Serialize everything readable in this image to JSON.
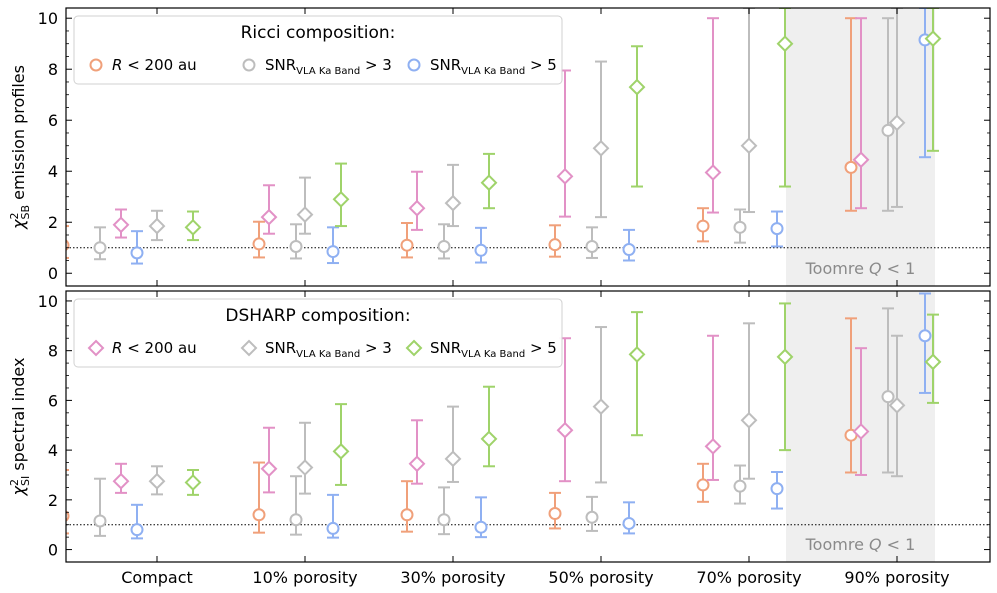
{
  "colors": {
    "orange": "#f0a07a",
    "gray": "#bdbdbd",
    "blue": "#8fb0f2",
    "pink": "#e291c6",
    "green": "#9fd36a",
    "shade": "#efefef"
  },
  "chart_data": {
    "type": "scatter",
    "description_kind": "errorbar",
    "categories": [
      "Compact",
      "10% porosity",
      "30% porosity",
      "50% porosity",
      "70% porosity",
      "90% porosity"
    ],
    "toomre_label_prefix": "Toomre ",
    "toomre_label_q": "Q",
    "toomre_label_suffix": " < 1",
    "shaded_categories": [
      "90% porosity"
    ],
    "reference_line_y": 1,
    "panels": [
      {
        "id": "top",
        "ylabel_main": "χ",
        "ylabel_sup": "2",
        "ylabel_sub": "SB",
        "ylabel_rest": " emission profiles",
        "ylim": [
          -0.5,
          10.4
        ],
        "yticks": [
          0,
          2,
          4,
          6,
          8,
          10
        ],
        "legend_title": "Ricci composition:",
        "legend": [
          {
            "label_a": "R",
            "label_b": " < 200 au",
            "sub": "",
            "color_key": "orange",
            "marker": "circle"
          },
          {
            "label_a": "SNR",
            "label_b": " > 3",
            "sub": "VLA Ka Band",
            "color_key": "gray",
            "marker": "circle"
          },
          {
            "label_a": "SNR",
            "label_b": " > 5",
            "sub": "VLA Ka Band",
            "color_key": "blue",
            "marker": "circle"
          }
        ],
        "series": [
          {
            "name": "Ricci R<200au",
            "color_key": "orange",
            "marker": "circle",
            "cat_index": [
              0,
              1,
              2,
              3,
              4,
              5
            ],
            "slot": 0,
            "points": [
              [
                0,
                1.1,
                0.6,
                1.85
              ],
              [
                1,
                1.15,
                0.62,
                2.02
              ],
              [
                2,
                1.1,
                0.62,
                1.97
              ],
              [
                3,
                1.12,
                0.65,
                1.88
              ],
              [
                4,
                1.85,
                1.25,
                2.55
              ],
              [
                5,
                4.15,
                2.45,
                10.0
              ]
            ]
          },
          {
            "name": "Ricci SNR>3",
            "color_key": "gray",
            "marker": "circle",
            "slot": 1,
            "points": [
              [
                0,
                1.0,
                0.55,
                1.8
              ],
              [
                1,
                1.05,
                0.58,
                1.92
              ],
              [
                2,
                1.05,
                0.58,
                1.92
              ],
              [
                3,
                1.05,
                0.6,
                1.8
              ],
              [
                4,
                1.8,
                1.2,
                2.5
              ],
              [
                5,
                5.6,
                2.45,
                10.0
              ]
            ]
          },
          {
            "name": "Ricci SNR>5",
            "color_key": "blue",
            "marker": "circle",
            "slot": 2,
            "points": [
              [
                0,
                0.8,
                0.38,
                1.65
              ],
              [
                1,
                0.85,
                0.4,
                1.8
              ],
              [
                2,
                0.9,
                0.42,
                1.78
              ],
              [
                3,
                0.93,
                0.5,
                1.7
              ],
              [
                4,
                1.75,
                1.05,
                2.42
              ],
              [
                5,
                9.15,
                4.55,
                10.4
              ]
            ]
          },
          {
            "name": "DSHARP R<200au",
            "color_key": "pink",
            "marker": "diamond",
            "slot": 0,
            "points": [
              [
                0,
                1.9,
                1.4,
                2.5
              ],
              [
                1,
                2.2,
                1.55,
                3.45
              ],
              [
                2,
                2.55,
                1.7,
                3.98
              ],
              [
                3,
                3.8,
                2.22,
                7.95
              ],
              [
                4,
                3.95,
                2.38,
                10.0
              ],
              [
                5,
                4.45,
                2.55,
                10.0
              ]
            ]
          },
          {
            "name": "DSHARP SNR>3",
            "color_key": "gray",
            "marker": "diamond",
            "slot": 1,
            "points": [
              [
                0,
                1.85,
                1.3,
                2.45
              ],
              [
                1,
                2.3,
                1.55,
                3.75
              ],
              [
                2,
                2.75,
                1.85,
                4.25
              ],
              [
                3,
                4.9,
                2.2,
                8.3
              ],
              [
                4,
                5.0,
                2.4,
                10.4
              ],
              [
                5,
                5.9,
                2.6,
                10.4
              ]
            ]
          },
          {
            "name": "DSHARP SNR>5",
            "color_key": "green",
            "marker": "diamond",
            "slot": 2,
            "points": [
              [
                0,
                1.8,
                1.3,
                2.42
              ],
              [
                1,
                2.9,
                1.85,
                4.3
              ],
              [
                2,
                3.55,
                2.55,
                4.68
              ],
              [
                3,
                7.3,
                3.4,
                8.9
              ],
              [
                4,
                9.0,
                3.4,
                10.4
              ],
              [
                5,
                9.2,
                4.8,
                10.4
              ]
            ]
          }
        ]
      },
      {
        "id": "bottom",
        "ylabel_main": "χ",
        "ylabel_sup": "2",
        "ylabel_sub": "SI",
        "ylabel_rest": " spectral index",
        "ylim": [
          -0.5,
          10.4
        ],
        "yticks": [
          0,
          2,
          4,
          6,
          8,
          10
        ],
        "legend_title": "DSHARP composition:",
        "legend": [
          {
            "label_a": "R",
            "label_b": " < 200 au",
            "sub": "",
            "color_key": "pink",
            "marker": "diamond"
          },
          {
            "label_a": "SNR",
            "label_b": " > 3",
            "sub": "VLA Ka Band",
            "color_key": "gray",
            "marker": "diamond"
          },
          {
            "label_a": "SNR",
            "label_b": " > 5",
            "sub": "VLA Ka Band",
            "color_key": "green",
            "marker": "diamond"
          }
        ],
        "series": [
          {
            "name": "Ricci R<200au",
            "color_key": "orange",
            "marker": "circle",
            "slot": 0,
            "points": [
              [
                0,
                1.35,
                0.65,
                3.2
              ],
              [
                1,
                1.4,
                0.68,
                3.5
              ],
              [
                2,
                1.4,
                0.72,
                2.75
              ],
              [
                3,
                1.45,
                0.85,
                2.28
              ],
              [
                4,
                2.6,
                1.92,
                3.45
              ],
              [
                5,
                4.6,
                3.1,
                9.3
              ]
            ]
          },
          {
            "name": "Ricci SNR>3",
            "color_key": "gray",
            "marker": "circle",
            "slot": 1,
            "points": [
              [
                0,
                1.15,
                0.55,
                2.85
              ],
              [
                1,
                1.2,
                0.6,
                2.95
              ],
              [
                2,
                1.2,
                0.62,
                2.5
              ],
              [
                3,
                1.3,
                0.75,
                2.12
              ],
              [
                4,
                2.55,
                1.85,
                3.38
              ],
              [
                5,
                6.15,
                3.1,
                9.7
              ]
            ]
          },
          {
            "name": "Ricci SNR>5",
            "color_key": "blue",
            "marker": "circle",
            "slot": 2,
            "points": [
              [
                0,
                0.8,
                0.45,
                1.8
              ],
              [
                1,
                0.85,
                0.48,
                2.2
              ],
              [
                2,
                0.9,
                0.5,
                2.1
              ],
              [
                3,
                1.05,
                0.65,
                1.9
              ],
              [
                4,
                2.45,
                1.65,
                3.12
              ],
              [
                5,
                8.6,
                6.3,
                10.3
              ]
            ]
          },
          {
            "name": "DSHARP R<200au",
            "color_key": "pink",
            "marker": "diamond",
            "slot": 0,
            "points": [
              [
                0,
                2.75,
                2.28,
                3.45
              ],
              [
                1,
                3.25,
                2.3,
                4.9
              ],
              [
                2,
                3.45,
                2.65,
                5.2
              ],
              [
                3,
                4.8,
                2.75,
                8.5
              ],
              [
                4,
                4.15,
                2.8,
                8.6
              ],
              [
                5,
                4.75,
                3.0,
                8.1
              ]
            ]
          },
          {
            "name": "DSHARP SNR>3",
            "color_key": "gray",
            "marker": "diamond",
            "slot": 1,
            "points": [
              [
                0,
                2.75,
                2.22,
                3.35
              ],
              [
                1,
                3.3,
                2.25,
                5.1
              ],
              [
                2,
                3.65,
                2.72,
                5.75
              ],
              [
                3,
                5.75,
                2.7,
                8.95
              ],
              [
                4,
                5.2,
                2.85,
                9.1
              ],
              [
                5,
                5.8,
                2.95,
                8.6
              ]
            ]
          },
          {
            "name": "DSHARP SNR>5",
            "color_key": "green",
            "marker": "diamond",
            "slot": 2,
            "points": [
              [
                0,
                2.7,
                2.2,
                3.2
              ],
              [
                1,
                3.95,
                2.6,
                5.85
              ],
              [
                2,
                4.45,
                3.35,
                6.55
              ],
              [
                3,
                7.85,
                4.6,
                9.55
              ],
              [
                4,
                7.75,
                4.0,
                9.9
              ],
              [
                5,
                7.55,
                5.9,
                9.45
              ]
            ]
          }
        ]
      }
    ]
  }
}
